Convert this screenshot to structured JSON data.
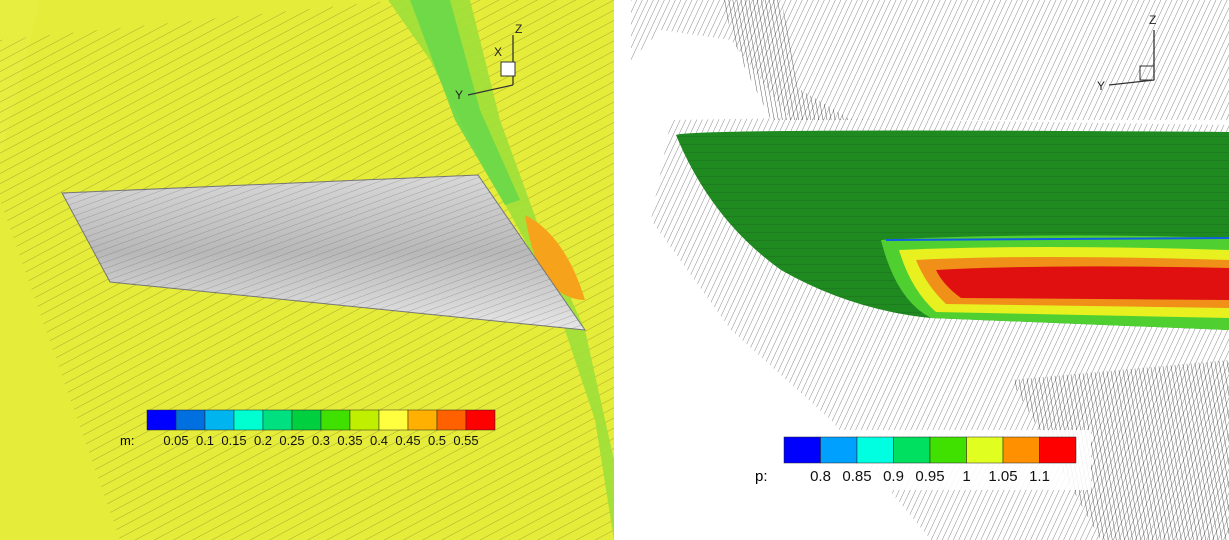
{
  "left_plot": {
    "axes": {
      "x": "X",
      "y": "Y",
      "z": "Z"
    },
    "colorbar": {
      "variable": "m:",
      "ticks": [
        "0.05",
        "0.1",
        "0.15",
        "0.2",
        "0.25",
        "0.3",
        "0.35",
        "0.4",
        "0.45",
        "0.5",
        "0.55"
      ],
      "colors": [
        "#0000ff",
        "#0070e0",
        "#00b4f0",
        "#00ffd0",
        "#00e080",
        "#00d040",
        "#40e000",
        "#c0f000",
        "#ffff40",
        "#ffb000",
        "#ff6000",
        "#ff0000"
      ]
    }
  },
  "right_plot": {
    "axes": {
      "y": "Y",
      "z": "Z"
    },
    "colorbar": {
      "variable": "p:",
      "ticks": [
        "0.8",
        "0.85",
        "0.9",
        "0.95",
        "1",
        "1.05",
        "1.1"
      ],
      "colors": [
        "#0000ff",
        "#00a0ff",
        "#00ffe0",
        "#00e060",
        "#40e000",
        "#e0ff20",
        "#ff9000",
        "#ff0000"
      ]
    }
  }
}
